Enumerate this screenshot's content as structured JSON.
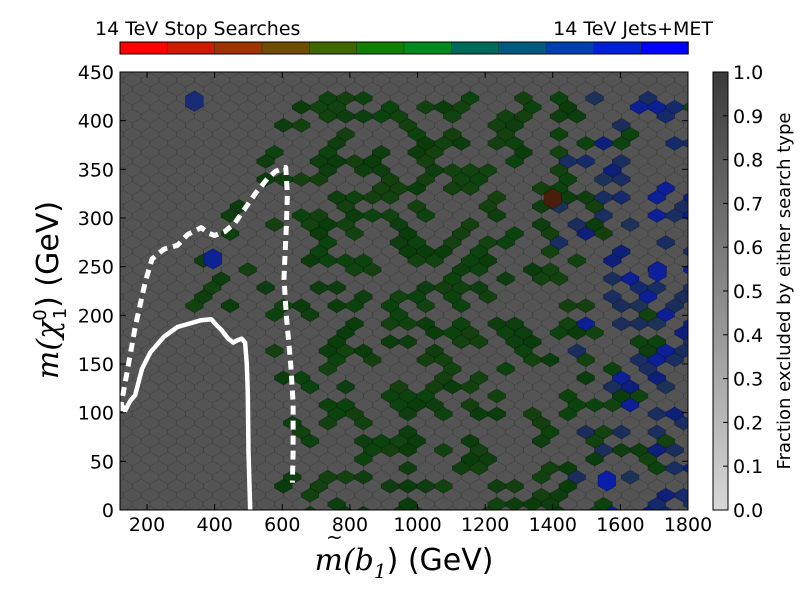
{
  "chart_data": {
    "type": "heatmap",
    "subtype": "hexbin",
    "xlabel": {
      "prefix": "m(",
      "var": "b",
      "sub": "1",
      "suffix": ") (GeV)"
    },
    "ylabel": {
      "prefix": "m(",
      "var": "χ",
      "sup": "0",
      "sub": "1",
      "suffix": ")  (GeV)"
    },
    "xlim": [
      120,
      1800
    ],
    "ylim": [
      0,
      450
    ],
    "xticks": [
      200,
      400,
      600,
      800,
      1000,
      1200,
      1400,
      1600,
      1800
    ],
    "yticks": [
      0,
      50,
      100,
      150,
      200,
      250,
      300,
      350,
      400,
      450
    ],
    "top_colorbar": {
      "left_label": "14 TeV Stop Searches",
      "right_label": "14 TeV Jets+MET",
      "colors": [
        "#ff0000",
        "#d01a00",
        "#a03400",
        "#704d00",
        "#406600",
        "#108000",
        "#008a20",
        "#006a5a",
        "#005a80",
        "#0040b0",
        "#0020d8",
        "#0000ff"
      ]
    },
    "side_colorbar": {
      "label": "Fraction excluded by either search type",
      "range": [
        0.0,
        1.0
      ],
      "ticks": [
        "0.0",
        "0.1",
        "0.2",
        "0.3",
        "0.4",
        "0.5",
        "0.6",
        "0.7",
        "0.8",
        "0.9",
        "1.0"
      ],
      "low_color": "#d8d8d8",
      "high_color": "#3a3a3a"
    },
    "background_color": "#545454",
    "hex_grid": {
      "x_start": 130,
      "x_step": 52.6,
      "y_step": 9.27
    },
    "regions": {
      "green_colors": [
        "#0a3c0c",
        "#0c420e",
        "#11420f",
        "#0e3d10",
        "#143f0e"
      ],
      "blue_colors": [
        "#1a2d60",
        "#152a6b",
        "#0e1f7a",
        "#1d3257",
        "#0c1f95",
        "#1b2d5a"
      ],
      "highlight_hexes": [
        {
          "x": 1400,
          "y": 320,
          "color": "#4a1e0c"
        },
        {
          "x": 1560,
          "y": 30,
          "color": "#0a1fa8"
        },
        {
          "x": 340,
          "y": 420,
          "color": "#182c78"
        },
        {
          "x": 395,
          "y": 258,
          "color": "#0d2394"
        },
        {
          "x": 1710,
          "y": 245,
          "color": "#0e1f9a"
        }
      ]
    },
    "series": [
      {
        "name": "solid-contour",
        "style": "solid",
        "color": "#ffffff",
        "x": [
          125,
          135,
          150,
          165,
          185,
          210,
          250,
          290,
          330,
          360,
          390,
          405,
          420,
          440,
          455,
          465,
          480,
          490,
          495,
          498,
          500,
          505
        ],
        "y": [
          108,
          102,
          112,
          118,
          145,
          162,
          178,
          188,
          192,
          195,
          196,
          190,
          185,
          176,
          172,
          174,
          176,
          172,
          150,
          120,
          60,
          0
        ]
      },
      {
        "name": "dashed-contour",
        "style": "dashed",
        "color": "#ffffff",
        "x": [
          120,
          140,
          165,
          195,
          215,
          250,
          290,
          320,
          360,
          385,
          400,
          430,
          460,
          490,
          520,
          555,
          580,
          610,
          615,
          612,
          608,
          605,
          612,
          625,
          632,
          632,
          630
        ],
        "y": [
          102,
          140,
          188,
          235,
          258,
          268,
          272,
          283,
          290,
          284,
          282,
          286,
          295,
          310,
          325,
          340,
          348,
          352,
          325,
          290,
          262,
          238,
          200,
          150,
          110,
          60,
          28
        ]
      }
    ]
  }
}
